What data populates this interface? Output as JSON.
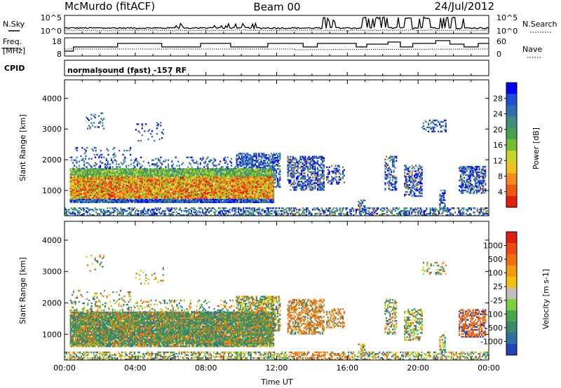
{
  "header": {
    "station": "McMurdo (fitACF)",
    "beam": "Beam 00",
    "date": "24/Jul/2012"
  },
  "strips": {
    "nsky_label": "N.Sky",
    "nsearch_label": "N.Search",
    "noise_ticks_left": [
      "10^5",
      "10^0"
    ],
    "noise_ticks_right": [
      "10^5",
      "10^0"
    ],
    "freq_label_1": "Freq.",
    "freq_label_2": "[MHz]",
    "freq_ticks": [
      "18",
      "8"
    ],
    "nave_label": "Nave",
    "nave_ticks": [
      "60",
      "0"
    ],
    "cpid_label": "CPID",
    "cpid_text": "normalsound (fast) -157 RF"
  },
  "chart_data": [
    {
      "type": "heatmap",
      "name": "power",
      "ylabel": "Slant Range [km]",
      "xlabel": "",
      "y_ticks": [
        "1000",
        "2000",
        "3000",
        "4000"
      ],
      "y_tick_values": [
        1000,
        2000,
        3000,
        4000
      ],
      "ylim": [
        180,
        4600
      ],
      "xlim_hours": [
        0,
        24
      ],
      "colorbar": {
        "label": "Power [dB]",
        "ticks": [
          "4",
          "8",
          "12",
          "16",
          "20",
          "24",
          "28"
        ],
        "colors": [
          "#0000ff",
          "#1f4fd8",
          "#2f6fb0",
          "#3f8f7f",
          "#47a04a",
          "#72c032",
          "#c8d428",
          "#f0c020",
          "#f58a1f",
          "#ee5a14",
          "#e0200a"
        ]
      }
    },
    {
      "type": "heatmap",
      "name": "velocity",
      "ylabel": "Slant Range [km]",
      "xlabel": "Time UT",
      "y_ticks": [
        "1000",
        "2000",
        "3000",
        "4000"
      ],
      "y_tick_values": [
        1000,
        2000,
        3000,
        4000
      ],
      "ylim": [
        180,
        4600
      ],
      "x_ticks": [
        "00:00",
        "04:00",
        "08:00",
        "12:00",
        "16:00",
        "20:00",
        "00:00"
      ],
      "x_tick_hours": [
        0,
        4,
        8,
        12,
        16,
        20,
        24
      ],
      "colorbar": {
        "label": "Velocity [m s-1]",
        "ticks": [
          "1000",
          "500",
          "100",
          "25",
          "-25",
          "-100",
          "-500",
          "-1000"
        ],
        "colors": [
          "#2244bb",
          "#2e6fa2",
          "#3a8a6a",
          "#47a84a",
          "#7fd040",
          "#bfbfbf",
          "#f5c010",
          "#f59a12",
          "#f07010",
          "#ee4a10",
          "#e01e10"
        ]
      }
    }
  ]
}
